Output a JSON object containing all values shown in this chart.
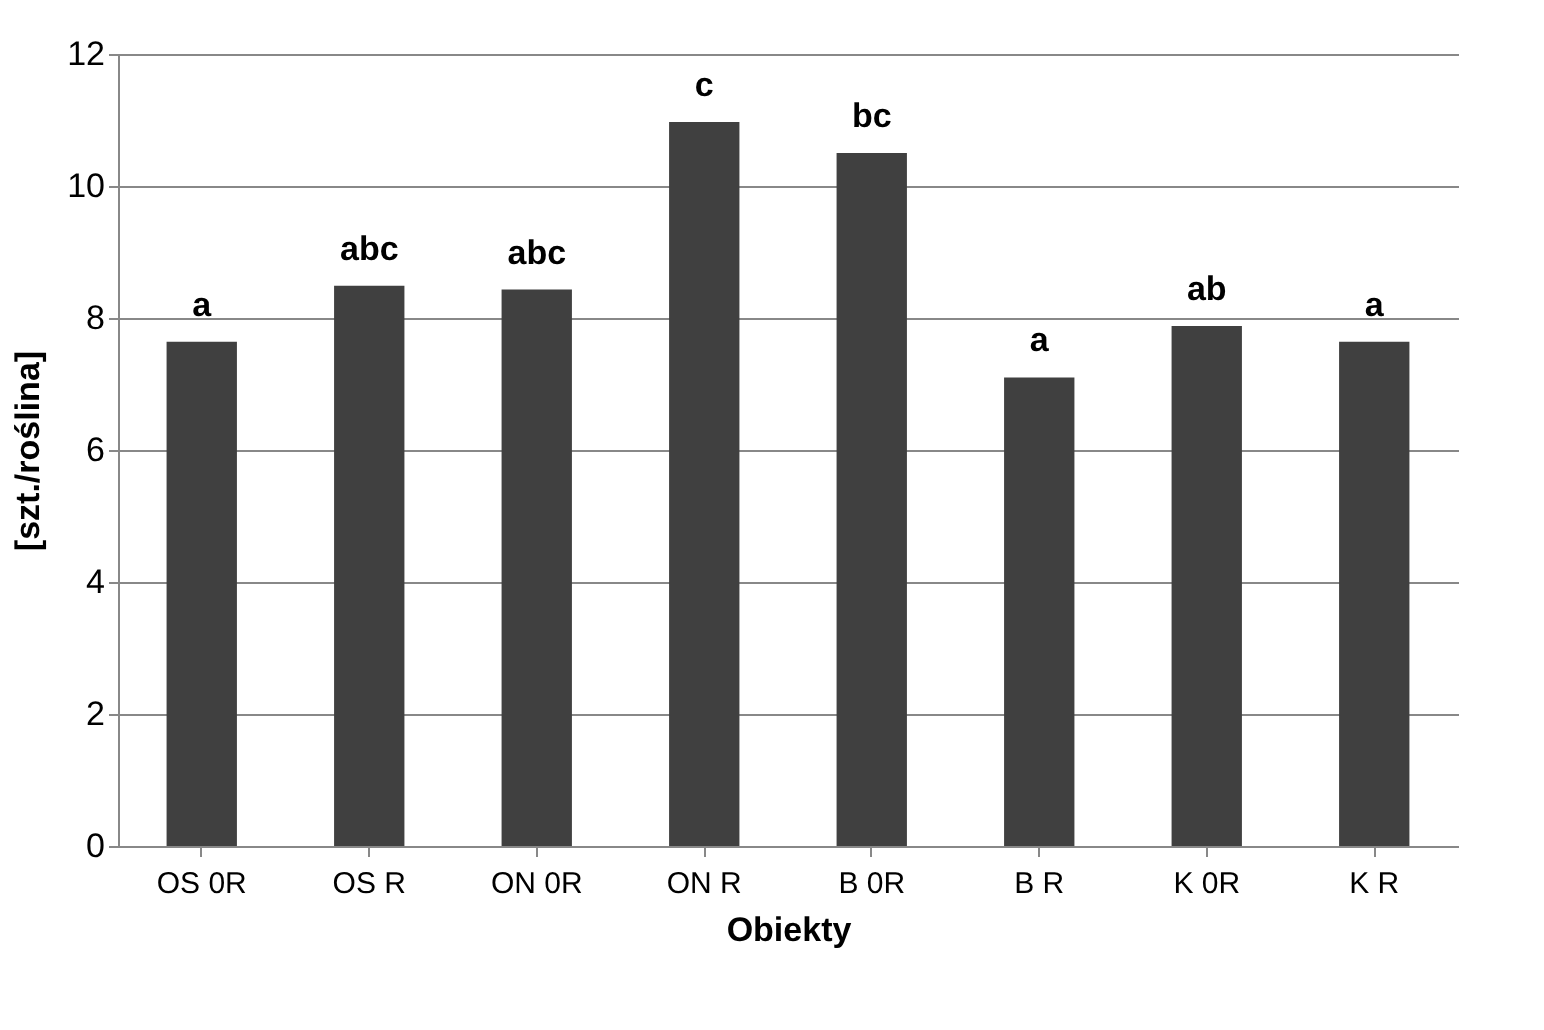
{
  "chart_data": {
    "type": "bar",
    "xlabel": "Obiekty",
    "ylabel": "[szt./roślina]",
    "categories": [
      "OS 0R",
      "OS R",
      "ON 0R",
      "ON R",
      "B 0R",
      "B R",
      "K 0R",
      "K R"
    ],
    "values": [
      7.64,
      8.49,
      8.43,
      10.97,
      10.5,
      7.1,
      7.88,
      7.64
    ],
    "color": "#404040",
    "ylim": [
      0,
      12
    ],
    "yticks": [
      0,
      2,
      4,
      6,
      8,
      10,
      12
    ],
    "grid": "y",
    "annotations": [
      {
        "text": "a",
        "x": "OS 0R",
        "y": 7.64
      },
      {
        "text": "abc",
        "x": "OS R",
        "y": 8.49
      },
      {
        "text": "abc",
        "x": "ON 0R",
        "y": 8.43
      },
      {
        "text": "c",
        "x": "ON R",
        "y": 10.97
      },
      {
        "text": "bc",
        "x": "B 0R",
        "y": 10.5
      },
      {
        "text": "a",
        "x": "B R",
        "y": 7.1
      },
      {
        "text": "ab",
        "x": "K 0R",
        "y": 7.88
      },
      {
        "text": "a",
        "x": "K R",
        "y": 7.64
      }
    ]
  }
}
